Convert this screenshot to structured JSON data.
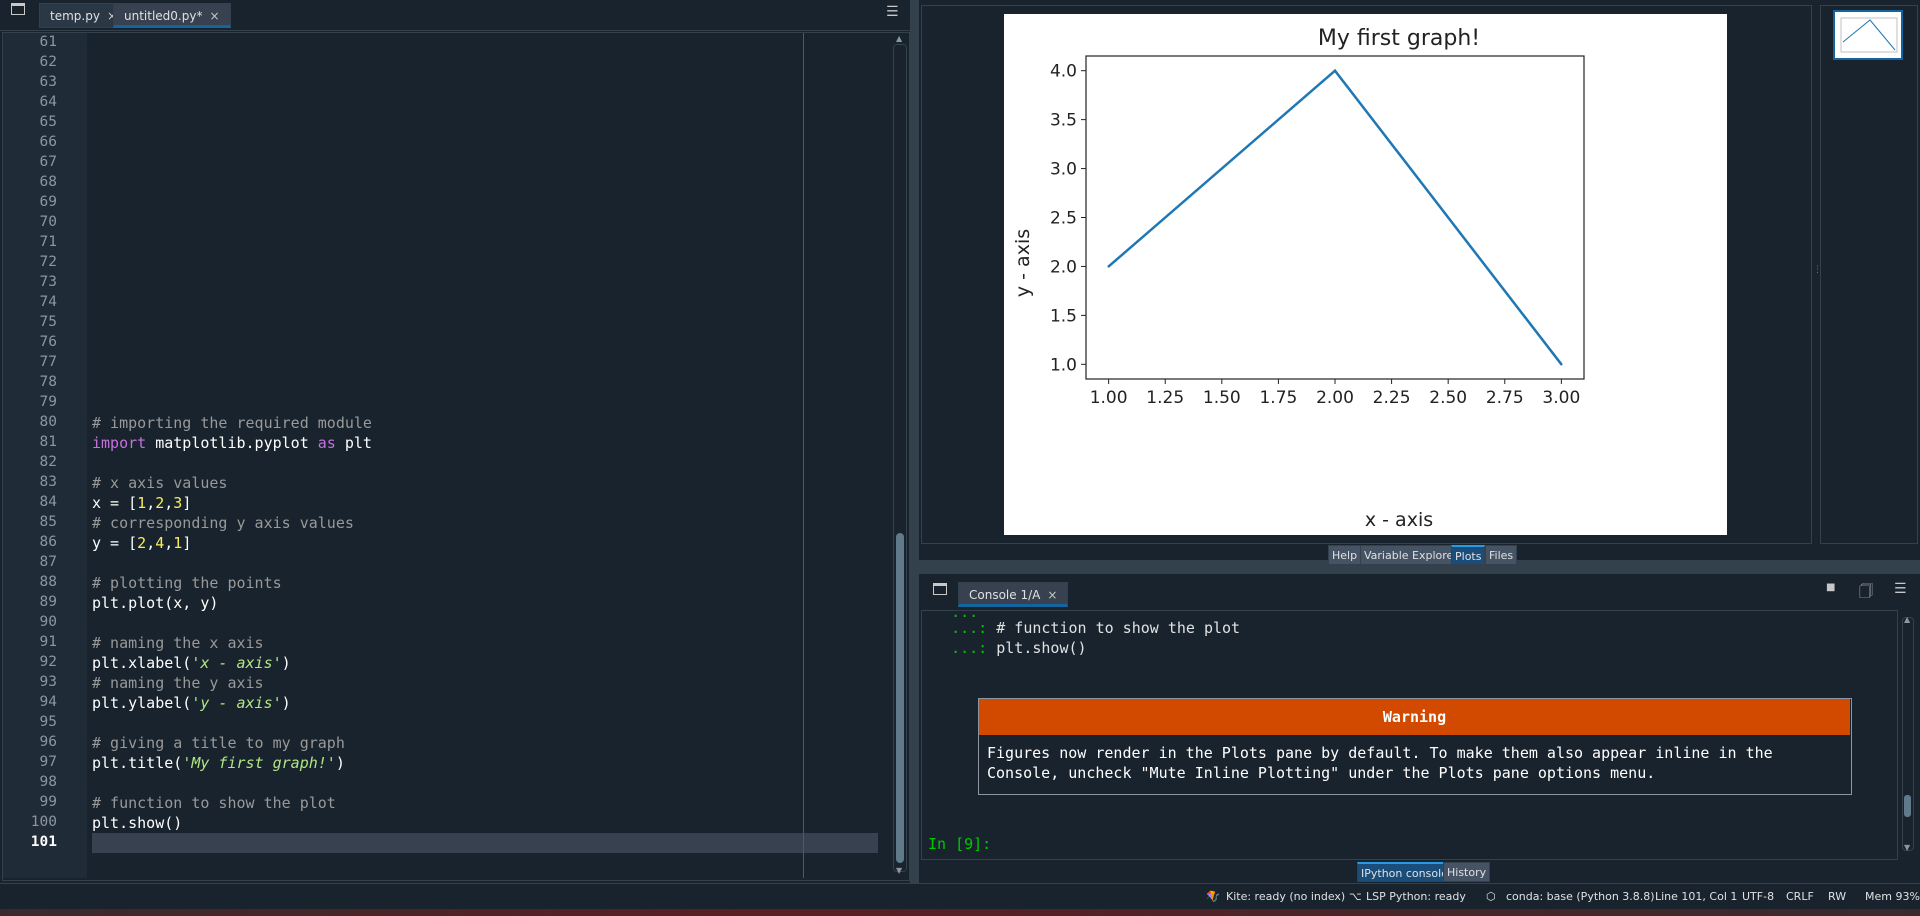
{
  "editor": {
    "tabs": [
      {
        "label": "temp.py",
        "close": "×"
      },
      {
        "label": "untitled0.py*",
        "close": "×"
      }
    ],
    "menu_icon": "hamburger-menu-icon",
    "line_numbers": [
      "61",
      "62",
      "63",
      "64",
      "65",
      "66",
      "67",
      "68",
      "69",
      "70",
      "71",
      "72",
      "73",
      "74",
      "75",
      "76",
      "77",
      "78",
      "79",
      "80",
      "81",
      "82",
      "83",
      "84",
      "85",
      "86",
      "87",
      "88",
      "89",
      "90",
      "91",
      "92",
      "93",
      "94",
      "95",
      "96",
      "97",
      "98",
      "99",
      "100",
      "101"
    ],
    "code": {
      "l80": "# importing the required module",
      "l81_kw1": "import",
      "l81_mid": " matplotlib.pyplot ",
      "l81_kw2": "as",
      "l81_end": " plt",
      "l83": "# x axis values",
      "l84_a": "x = [",
      "l84_n1": "1",
      "l84_n2": "2",
      "l84_n3": "3",
      "l85": "# corresponding y axis values",
      "l86_a": "y = [",
      "l86_n1": "2",
      "l86_n2": "4",
      "l86_n3": "1",
      "l88": "# plotting the points",
      "l89": "plt.plot(x, y)",
      "l91": "# naming the x axis",
      "l92_a": "plt.xlabel(",
      "l92_s": "'x - axis'",
      "l92_b": ")",
      "l93": "# naming the y axis",
      "l94_a": "plt.ylabel(",
      "l94_s": "'y - axis'",
      "l94_b": ")",
      "l96": "# giving a title to my graph",
      "l97_a": "plt.title(",
      "l97_s": "'My first graph!'",
      "l97_b": ")",
      "l99": "# function to show the plot",
      "l100": "plt.show()"
    }
  },
  "plots": {
    "pane_tabs": [
      "Help",
      "Variable Explorer",
      "Plots",
      "Files"
    ],
    "active_tab": "Plots"
  },
  "chart_data": {
    "type": "line",
    "title": "My first graph!",
    "xlabel": "x - axis",
    "ylabel": "y - axis",
    "x": [
      1,
      2,
      3
    ],
    "series": [
      {
        "values": [
          2,
          4,
          1
        ],
        "color": "#1f77b4"
      }
    ],
    "xlim": [
      0.9,
      3.1
    ],
    "ylim": [
      0.85,
      4.15
    ],
    "xticks": [
      1.0,
      1.25,
      1.5,
      1.75,
      2.0,
      2.25,
      2.5,
      2.75,
      3.0
    ],
    "xtick_labels": [
      "1.00",
      "1.25",
      "1.50",
      "1.75",
      "2.00",
      "2.25",
      "2.50",
      "2.75",
      "3.00"
    ],
    "yticks": [
      1.0,
      1.5,
      2.0,
      2.5,
      3.0,
      3.5,
      4.0
    ],
    "ytick_labels": [
      "1.0",
      "1.5",
      "2.0",
      "2.5",
      "3.0",
      "3.5",
      "4.0"
    ],
    "grid": false
  },
  "console": {
    "tab_label": "Console 1/A",
    "tab_close": "×",
    "partial_line": "   ...",
    "line1_prompt": "   ...:",
    "line1_text": " # function to show the plot",
    "line2_prompt": "   ...:",
    "line2_text": " plt.show()",
    "warning_title": "Warning",
    "warning_text": "Figures now render in the Plots pane by default. To make them also appear inline in the\nConsole, uncheck \"Mute Inline Plotting\" under the Plots pane options menu.",
    "input_prompt": "In [9]:",
    "pane_tabs": [
      "IPython console",
      "History"
    ],
    "active_tab": "IPython console",
    "toolbar_icons": [
      "stop-icon",
      "clear-icon",
      "menu-icon"
    ]
  },
  "status": {
    "kite": "Kite: ready (no index)",
    "lsp": "LSP Python: ready",
    "conda": "conda: base (Python 3.8.8)",
    "position": "Line 101, Col 1",
    "encoding": "UTF-8",
    "eol": "CRLF",
    "permissions": "RW",
    "memory": "Mem 93%"
  },
  "colors": {
    "background": "#19232d",
    "accent": "#1464a0",
    "warning": "#d24a00",
    "plot_line": "#1f77b4"
  }
}
